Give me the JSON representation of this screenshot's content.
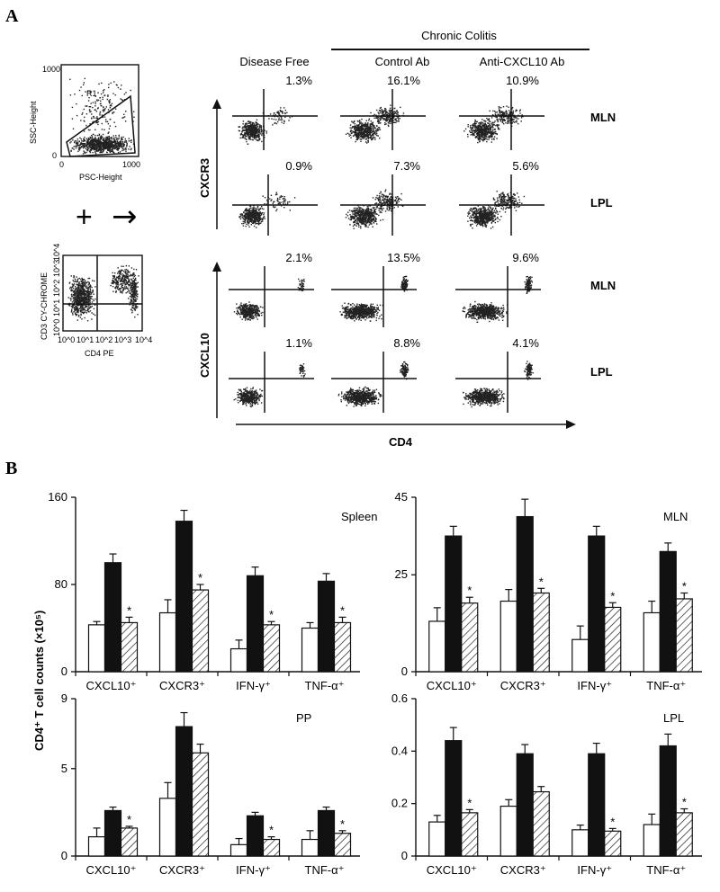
{
  "figure": {
    "panel_a_label": "A",
    "panel_b_label": "B",
    "gate_plot": {
      "ylabel": "SSC-Height",
      "xlabel": "PSC-Height",
      "gate": "R1",
      "ymax_tick": "1000",
      "ymin_tick": "0",
      "xmin_tick": "0",
      "xmax_tick": "1000"
    },
    "cd3_plot": {
      "ylabel": "CD3 CY-CHROME",
      "xlabel": "CD4 PE",
      "ticks": [
        "10^0",
        "10^1",
        "10^2",
        "10^3",
        "10^4"
      ]
    },
    "and_symbol": "+",
    "arrow_symbol": "→",
    "header": {
      "group": "Chronic Colitis",
      "columns": [
        "Disease Free",
        "Control Ab",
        "Anti-CXCL10 Ab"
      ]
    },
    "row_labels": [
      "MLN",
      "LPL",
      "MLN",
      "LPL"
    ],
    "axis_labels": {
      "cxcr3": "CXCR3",
      "cxcl10": "CXCL10",
      "cd4": "CD4"
    },
    "percentages": [
      [
        "1.3%",
        "16.1%",
        "10.9%"
      ],
      [
        "0.9%",
        "7.3%",
        "5.6%"
      ],
      [
        "2.1%",
        "13.5%",
        "9.6%"
      ],
      [
        "1.1%",
        "8.8%",
        "4.1%"
      ]
    ],
    "y_axis_title": "CD4⁺ T cell counts (×10⁵)",
    "colors": {
      "black": "#111111",
      "white": "#ffffff",
      "hatch": "#111111"
    }
  },
  "chart_data": [
    {
      "type": "bar",
      "title": "Spleen",
      "categories": [
        "CXCL10⁺",
        "CXCR3⁺",
        "IFN-γ⁺",
        "TNF-α⁺"
      ],
      "ylim": [
        0,
        160
      ],
      "yticks": [
        0,
        80,
        160
      ],
      "series": [
        {
          "name": "Disease Free",
          "fill": "white",
          "values": [
            43,
            54,
            21,
            40
          ],
          "errors": [
            3,
            12,
            8,
            5
          ]
        },
        {
          "name": "Control Ab",
          "fill": "black",
          "values": [
            100,
            138,
            88,
            83
          ],
          "errors": [
            8,
            10,
            8,
            7
          ]
        },
        {
          "name": "Anti-CXCL10 Ab",
          "fill": "hatch",
          "values": [
            45,
            75,
            43,
            45
          ],
          "errors": [
            5,
            5,
            3,
            5
          ]
        }
      ],
      "significance": [
        "*",
        "*",
        "*",
        "*"
      ]
    },
    {
      "type": "bar",
      "title": "MLN",
      "categories": [
        "CXCL10⁺",
        "CXCR3⁺",
        "IFN-γ⁺",
        "TNF-α⁺"
      ],
      "ylim": [
        0,
        45
      ],
      "yticks": [
        0,
        25,
        45
      ],
      "series": [
        {
          "name": "Disease Free",
          "fill": "white",
          "values": [
            13,
            18.2,
            8.3,
            15.2
          ],
          "errors": [
            3.5,
            3,
            3.5,
            3
          ]
        },
        {
          "name": "Control Ab",
          "fill": "black",
          "values": [
            35,
            40,
            35,
            31
          ],
          "errors": [
            2.5,
            4.5,
            2.5,
            2.2
          ]
        },
        {
          "name": "Anti-CXCL10 Ab",
          "fill": "hatch",
          "values": [
            17.7,
            20.3,
            16.6,
            18.8
          ],
          "errors": [
            1.5,
            1.2,
            1.2,
            1.5
          ]
        }
      ],
      "significance": [
        "*",
        "*",
        "*",
        "*"
      ]
    },
    {
      "type": "bar",
      "title": "PP",
      "categories": [
        "CXCL10⁺",
        "CXCR3⁺",
        "IFN-γ⁺",
        "TNF-α⁺"
      ],
      "ylim": [
        0,
        9
      ],
      "yticks": [
        0,
        5,
        9
      ],
      "series": [
        {
          "name": "Disease Free",
          "fill": "white",
          "values": [
            1.1,
            3.3,
            0.65,
            0.95
          ],
          "errors": [
            0.5,
            0.9,
            0.35,
            0.5
          ]
        },
        {
          "name": "Control Ab",
          "fill": "black",
          "values": [
            2.6,
            7.4,
            2.3,
            2.6
          ],
          "errors": [
            0.2,
            0.8,
            0.2,
            0.2
          ]
        },
        {
          "name": "Anti-CXCL10 Ab",
          "fill": "hatch",
          "values": [
            1.6,
            5.9,
            0.95,
            1.3
          ],
          "errors": [
            0.1,
            0.5,
            0.15,
            0.15
          ]
        }
      ],
      "significance": [
        "*",
        "",
        "*",
        "*"
      ]
    },
    {
      "type": "bar",
      "title": "LPL",
      "categories": [
        "CXCL10⁺",
        "CXCR3⁺",
        "IFN-γ⁺",
        "TNF-α⁺"
      ],
      "ylim": [
        0,
        0.6
      ],
      "yticks": [
        0,
        0.2,
        0.4,
        0.6
      ],
      "series": [
        {
          "name": "Disease Free",
          "fill": "white",
          "values": [
            0.13,
            0.19,
            0.1,
            0.12
          ],
          "errors": [
            0.025,
            0.025,
            0.018,
            0.04
          ]
        },
        {
          "name": "Control Ab",
          "fill": "black",
          "values": [
            0.44,
            0.39,
            0.39,
            0.42
          ],
          "errors": [
            0.05,
            0.035,
            0.04,
            0.045
          ]
        },
        {
          "name": "Anti-CXCL10 Ab",
          "fill": "hatch",
          "values": [
            0.165,
            0.245,
            0.095,
            0.165
          ],
          "errors": [
            0.012,
            0.02,
            0.01,
            0.015
          ]
        }
      ],
      "significance": [
        "*",
        "",
        "*",
        "*"
      ]
    }
  ]
}
